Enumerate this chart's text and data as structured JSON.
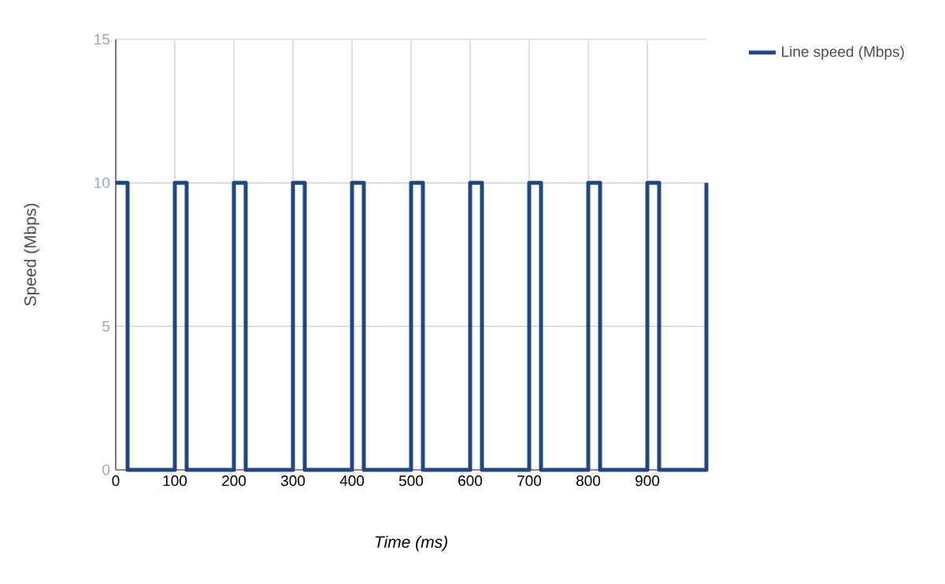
{
  "chart_data": {
    "type": "step",
    "xlabel": "Time (ms)",
    "ylabel": "Speed (Mbps)",
    "x": [
      0,
      20,
      100,
      120,
      200,
      220,
      300,
      320,
      400,
      420,
      500,
      520,
      600,
      620,
      700,
      720,
      800,
      820,
      900,
      920,
      1000
    ],
    "series": [
      {
        "name": "Line speed (Mbps)",
        "color": "#1f4788",
        "values": [
          10,
          0,
          10,
          0,
          10,
          0,
          10,
          0,
          10,
          0,
          10,
          0,
          10,
          0,
          10,
          0,
          10,
          0,
          10,
          0,
          10
        ]
      }
    ],
    "xlim": [
      0,
      1000
    ],
    "xticks": [
      0,
      100,
      200,
      300,
      400,
      500,
      600,
      700,
      800,
      900
    ],
    "ylim": [
      0,
      15
    ],
    "yticks": [
      0,
      5,
      10,
      15
    ],
    "grid": true,
    "legend": "top right"
  }
}
